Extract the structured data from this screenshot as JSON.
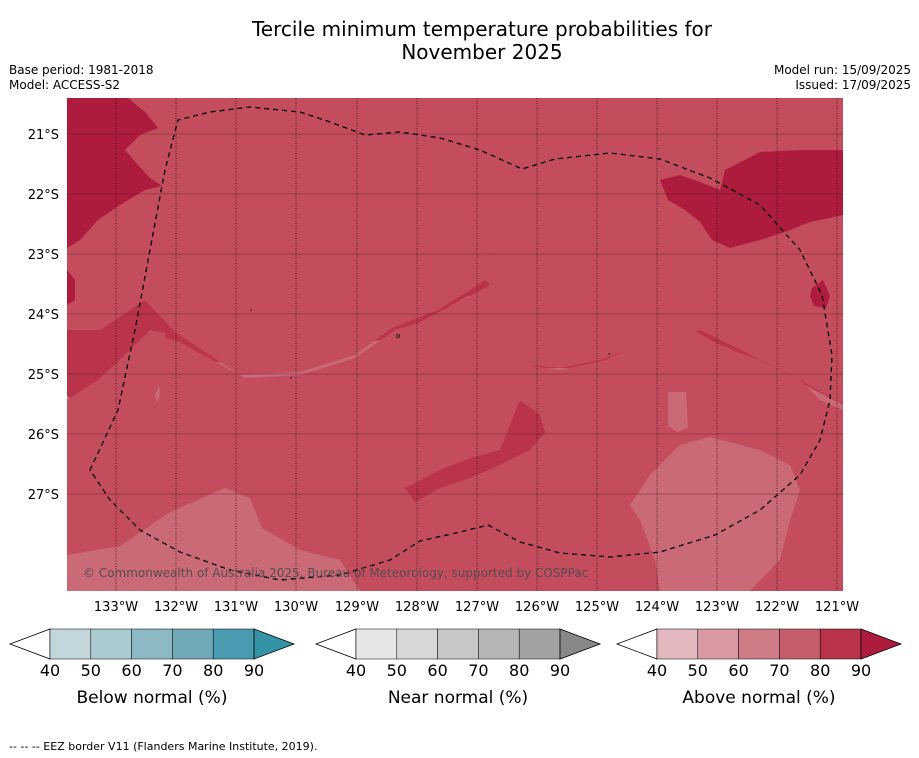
{
  "title_line1": "Tercile minimum temperature probabilities for",
  "title_line2": "November 2025",
  "base_period": "Base period: 1981-2018",
  "model": "Model: ACCESS-S2",
  "model_run": "Model run: 15/09/2025",
  "issued": "Issued: 17/09/2025",
  "copyright": "© Commonwealth of Australia 2025, Bureau of Meteorology, supported by COSPPac",
  "footer": "--  --  -- EEZ border V11 (Flanders Marine Institute, 2019).",
  "lat_labels": [
    "21°S",
    "22°S",
    "23°S",
    "24°S",
    "25°S",
    "26°S",
    "27°S"
  ],
  "lon_labels": [
    "133°W",
    "132°W",
    "131°W",
    "130°W",
    "129°W",
    "128°W",
    "127°W",
    "126°W",
    "125°W",
    "124°W",
    "123°W",
    "122°W",
    "121°W"
  ],
  "colorbars": [
    {
      "label": "Below normal (%)",
      "ticks": [
        "40",
        "50",
        "60",
        "70",
        "80",
        "90"
      ],
      "colors": [
        "#c2d6dc",
        "#a9cbd2",
        "#8db9c4",
        "#6fa9b8",
        "#4b9bb0",
        "#3593a8"
      ]
    },
    {
      "label": "Near normal (%)",
      "ticks": [
        "40",
        "50",
        "60",
        "70",
        "80",
        "90"
      ],
      "colors": [
        "#e6e6e6",
        "#d8d8d8",
        "#c8c8c8",
        "#b6b6b6",
        "#a2a2a2",
        "#888888"
      ]
    },
    {
      "label": "Above normal (%)",
      "ticks": [
        "40",
        "50",
        "60",
        "70",
        "80",
        "90"
      ],
      "colors": [
        "#e4b8bf",
        "#d99aa3",
        "#cf7c87",
        "#c55d6c",
        "#b9344a",
        "#ad1c3c"
      ]
    }
  ],
  "map_colors": {
    "c60": "#c96a76",
    "c70": "#c34d5d",
    "c80": "#b9344a",
    "c90": "#ad1c3c"
  }
}
